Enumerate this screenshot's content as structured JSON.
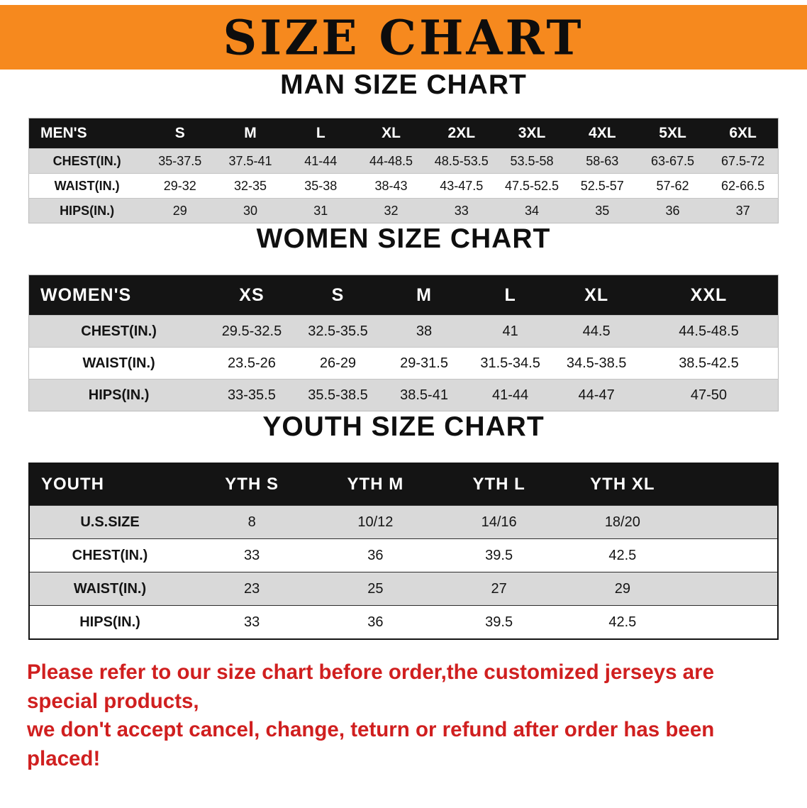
{
  "banner": {
    "title": "SIZE CHART",
    "bg_color": "#f6891e",
    "text_color": "#0d0d0d"
  },
  "sections": {
    "men": {
      "heading": "MAN SIZE CHART",
      "table": {
        "header": [
          "MEN'S",
          "S",
          "M",
          "L",
          "XL",
          "2XL",
          "3XL",
          "4XL",
          "5XL",
          "6XL"
        ],
        "rows": [
          [
            "CHEST(IN.)",
            "35-37.5",
            "37.5-41",
            "41-44",
            "44-48.5",
            "48.5-53.5",
            "53.5-58",
            "58-63",
            "63-67.5",
            "67.5-72"
          ],
          [
            "WAIST(IN.)",
            "29-32",
            "32-35",
            "35-38",
            "38-43",
            "43-47.5",
            "47.5-52.5",
            "52.5-57",
            "57-62",
            "62-66.5"
          ],
          [
            "HIPS(IN.)",
            "29",
            "30",
            "31",
            "32",
            "33",
            "34",
            "35",
            "36",
            "37"
          ]
        ]
      }
    },
    "women": {
      "heading": "WOMEN SIZE CHART",
      "table": {
        "header": [
          "WOMEN'S",
          "XS",
          "S",
          "M",
          "L",
          "XL",
          "XXL"
        ],
        "rows": [
          [
            "CHEST(IN.)",
            "29.5-32.5",
            "32.5-35.5",
            "38",
            "41",
            "44.5",
            "44.5-48.5"
          ],
          [
            "WAIST(IN.)",
            "23.5-26",
            "26-29",
            "29-31.5",
            "31.5-34.5",
            "34.5-38.5",
            "38.5-42.5"
          ],
          [
            "HIPS(IN.)",
            "33-35.5",
            "35.5-38.5",
            "38.5-41",
            "41-44",
            "44-47",
            "47-50"
          ]
        ]
      }
    },
    "youth": {
      "heading": "YOUTH SIZE CHART",
      "table": {
        "header": [
          "YOUTH",
          "YTH S",
          "YTH M",
          "YTH L",
          "YTH XL"
        ],
        "rows": [
          [
            "U.S.SIZE",
            "8",
            "10/12",
            "14/16",
            "18/20"
          ],
          [
            "CHEST(IN.)",
            "33",
            "36",
            "39.5",
            "42.5"
          ],
          [
            "WAIST(IN.)",
            "23",
            "25",
            "27",
            "29"
          ],
          [
            "HIPS(IN.)",
            "33",
            "36",
            "39.5",
            "42.5"
          ]
        ]
      }
    }
  },
  "disclaimer": {
    "line1": "Please refer to our size chart before order,the customized jerseys are special products,",
    "line2": "we don't accept cancel, change, teturn or refund after order has been placed!",
    "color": "#d01f1f"
  }
}
